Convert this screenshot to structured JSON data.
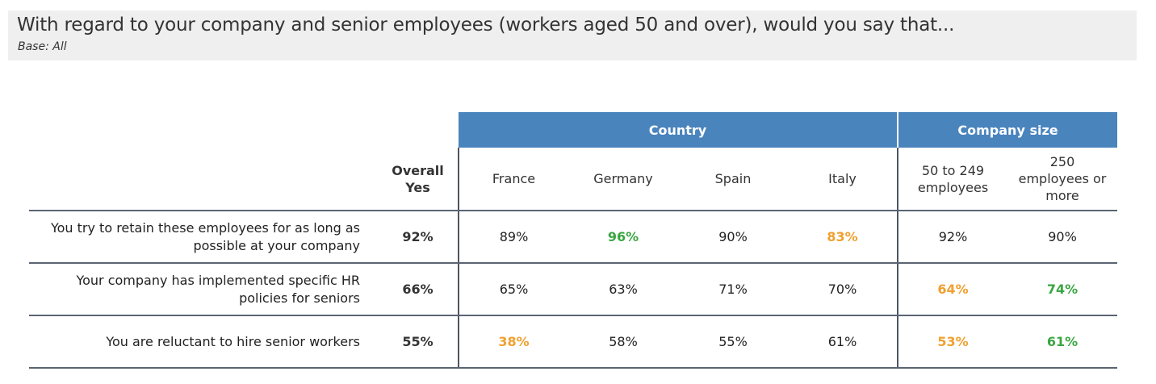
{
  "header": {
    "title": "With regard to your company and senior employees (workers aged 50 and over), would you say that...",
    "base": "Base: All"
  },
  "colors": {
    "band": "#4a84bd",
    "high": "#3aa641",
    "low": "#f0a030",
    "normal": "#222222"
  },
  "chart_data": {
    "type": "table",
    "groups": [
      {
        "label": "Country",
        "columns": [
          "France",
          "Germany",
          "Spain",
          "Italy"
        ]
      },
      {
        "label": "Company size",
        "columns": [
          "50 to 249 employees",
          "250 employees or more"
        ]
      }
    ],
    "overall_header": "Overall Yes",
    "columns": [
      "Overall Yes",
      "France",
      "Germany",
      "Spain",
      "Italy",
      "50 to 249 employees",
      "250 employees or more"
    ],
    "rows": [
      {
        "label": "You try to retain these employees for as long as possible at your company",
        "values": [
          "92%",
          "89%",
          "96%",
          "90%",
          "83%",
          "92%",
          "90%"
        ],
        "highlights": [
          "none",
          "none",
          "high",
          "none",
          "low",
          "none",
          "none"
        ]
      },
      {
        "label": "Your company has implemented specific HR policies for seniors",
        "values": [
          "66%",
          "65%",
          "63%",
          "71%",
          "70%",
          "64%",
          "74%"
        ],
        "highlights": [
          "none",
          "none",
          "none",
          "none",
          "none",
          "low",
          "high"
        ]
      },
      {
        "label": "You are reluctant to hire senior workers",
        "values": [
          "55%",
          "38%",
          "58%",
          "55%",
          "61%",
          "53%",
          "61%"
        ],
        "highlights": [
          "none",
          "low",
          "none",
          "none",
          "none",
          "low",
          "high"
        ]
      }
    ]
  }
}
